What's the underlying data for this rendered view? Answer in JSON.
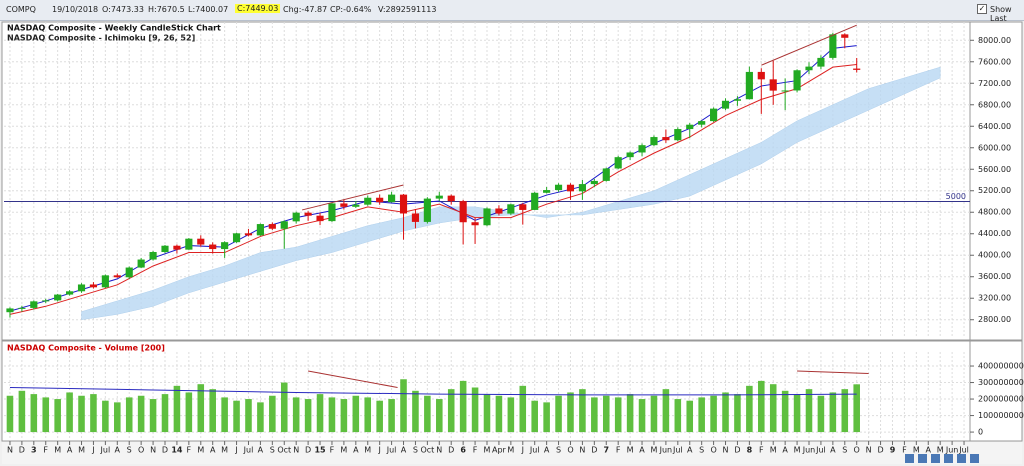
{
  "header": {
    "symbol": "COMPQ",
    "date": "19/10/2018",
    "open": "O:7473.33",
    "high": "H:7670.5",
    "low": "L:7400.07",
    "close": "C:7449.03",
    "change": "Chg:-47.87",
    "change_pct": "CP:-0.64%",
    "volume": "V:2892591113",
    "show_last": "Show Last"
  },
  "x_axis": {
    "xlim": [
      -0.5,
      80.5
    ],
    "xticks": [
      {
        "value": 0,
        "label": "N"
      },
      {
        "value": 1,
        "label": "D"
      },
      {
        "value": 2,
        "label": "3"
      },
      {
        "value": 3,
        "label": "F"
      },
      {
        "value": 4,
        "label": "M"
      },
      {
        "value": 5,
        "label": "A"
      },
      {
        "value": 6,
        "label": "M"
      },
      {
        "value": 7,
        "label": "J"
      },
      {
        "value": 8,
        "label": "Jul"
      },
      {
        "value": 9,
        "label": "A"
      },
      {
        "value": 10,
        "label": "S"
      },
      {
        "value": 11,
        "label": "O"
      },
      {
        "value": 12,
        "label": "N"
      },
      {
        "value": 13,
        "label": "D"
      },
      {
        "value": 14,
        "label": "14"
      },
      {
        "value": 15,
        "label": "F"
      },
      {
        "value": 16,
        "label": "M"
      },
      {
        "value": 17,
        "label": "A"
      },
      {
        "value": 18,
        "label": "M"
      },
      {
        "value": 19,
        "label": "J"
      },
      {
        "value": 20,
        "label": "Jul"
      },
      {
        "value": 21,
        "label": "A"
      },
      {
        "value": 22,
        "label": "S"
      },
      {
        "value": 23,
        "label": "Oct"
      },
      {
        "value": 24,
        "label": "N"
      },
      {
        "value": 25,
        "label": "D"
      },
      {
        "value": 26,
        "label": "15"
      },
      {
        "value": 27,
        "label": "F"
      },
      {
        "value": 28,
        "label": "M"
      },
      {
        "value": 29,
        "label": "A"
      },
      {
        "value": 30,
        "label": "M"
      },
      {
        "value": 31,
        "label": "J"
      },
      {
        "value": 32,
        "label": "Jul"
      },
      {
        "value": 33,
        "label": "A"
      },
      {
        "value": 34,
        "label": "S"
      },
      {
        "value": 35,
        "label": "Oct"
      },
      {
        "value": 36,
        "label": "N"
      },
      {
        "value": 37,
        "label": "D"
      },
      {
        "value": 38,
        "label": "6"
      },
      {
        "value": 39,
        "label": "F"
      },
      {
        "value": 40,
        "label": "M"
      },
      {
        "value": 41,
        "label": "Apr"
      },
      {
        "value": 42,
        "label": "M"
      },
      {
        "value": 43,
        "label": "J"
      },
      {
        "value": 44,
        "label": "Jul"
      },
      {
        "value": 45,
        "label": "A"
      },
      {
        "value": 46,
        "label": "S"
      },
      {
        "value": 47,
        "label": "O"
      },
      {
        "value": 48,
        "label": "N"
      },
      {
        "value": 49,
        "label": "D"
      },
      {
        "value": 50,
        "label": "7"
      },
      {
        "value": 51,
        "label": "F"
      },
      {
        "value": 52,
        "label": "M"
      },
      {
        "value": 53,
        "label": "A"
      },
      {
        "value": 54,
        "label": "M"
      },
      {
        "value": 55,
        "label": "Jun"
      },
      {
        "value": 56,
        "label": "Jul"
      },
      {
        "value": 57,
        "label": "A"
      },
      {
        "value": 58,
        "label": "S"
      },
      {
        "value": 59,
        "label": "O"
      },
      {
        "value": 60,
        "label": "N"
      },
      {
        "value": 61,
        "label": "D"
      },
      {
        "value": 62,
        "label": "8"
      },
      {
        "value": 63,
        "label": "F"
      },
      {
        "value": 64,
        "label": "M"
      },
      {
        "value": 65,
        "label": "A"
      },
      {
        "value": 66,
        "label": "M"
      },
      {
        "value": 67,
        "label": "Jun"
      },
      {
        "value": 68,
        "label": "Jul"
      },
      {
        "value": 69,
        "label": "A"
      },
      {
        "value": 70,
        "label": "S"
      },
      {
        "value": 71,
        "label": "O"
      },
      {
        "value": 72,
        "label": "N"
      },
      {
        "value": 73,
        "label": "D"
      },
      {
        "value": 74,
        "label": "9"
      },
      {
        "value": 75,
        "label": "F"
      },
      {
        "value": 76,
        "label": "M"
      },
      {
        "value": 77,
        "label": "A"
      },
      {
        "value": 78,
        "label": "M"
      },
      {
        "value": 79,
        "label": "Jun"
      },
      {
        "value": 80,
        "label": "Jul"
      }
    ]
  },
  "chart_data": [
    {
      "type": "candlestick",
      "title": "NASDAQ Composite - Weekly CandleStick Chart",
      "subtitle": "NASDAQ Composite - Ichimoku [9, 26, 52]",
      "up_color": "#22aa22",
      "down_color": "#dd1111",
      "open": [
        2940,
        3010,
        3020,
        3142,
        3160,
        3268,
        3329,
        3456,
        3403,
        3626,
        3590,
        3771,
        3920,
        4060,
        4177,
        4104,
        4308,
        4199,
        4115,
        4243,
        4408,
        4370,
        4580,
        4493,
        4631,
        4792,
        4736,
        4635,
        4964,
        4901,
        4941,
        5070,
        4987,
        5128,
        4777,
        4620,
        5054,
        5109,
        5007,
        4614,
        4558,
        4870,
        4775,
        4948,
        4843,
        5162,
        5213,
        5312,
        5189,
        5324,
        5383,
        5615,
        5825,
        5912,
        6048,
        6199,
        6140,
        6348,
        6429,
        6496,
        6728,
        6874,
        6903,
        7411,
        7273,
        7063,
        7066,
        7442,
        7510,
        7672,
        8110,
        7473.33
      ],
      "high": [
        3030,
        3060,
        3160,
        3190,
        3280,
        3350,
        3480,
        3500,
        3640,
        3660,
        3790,
        3950,
        4080,
        4190,
        4200,
        4320,
        4370,
        4240,
        4260,
        4420,
        4490,
        4590,
        4610,
        4650,
        4810,
        4820,
        4790,
        4980,
        5040,
        5010,
        5110,
        5130,
        5180,
        5140,
        4860,
        5080,
        5180,
        5130,
        5030,
        4700,
        4890,
        4930,
        4960,
        4970,
        5180,
        5270,
        5340,
        5340,
        5400,
        5420,
        5630,
        5850,
        5930,
        6080,
        6230,
        6340,
        6380,
        6460,
        6510,
        6750,
        6920,
        6960,
        7510,
        7480,
        7620,
        7290,
        7460,
        7590,
        7720,
        8140,
        8130,
        7670.5
      ],
      "low": [
        2840,
        2950,
        2990,
        3110,
        3140,
        3250,
        3300,
        3380,
        3390,
        3580,
        3560,
        3760,
        3900,
        4040,
        4030,
        4100,
        4160,
        4030,
        3950,
        4230,
        4350,
        4360,
        4470,
        4120,
        4590,
        4640,
        4560,
        4620,
        4850,
        4880,
        4920,
        4940,
        4980,
        4290,
        4500,
        4590,
        5010,
        4940,
        4200,
        4210,
        4540,
        4740,
        4750,
        4570,
        4840,
        5150,
        5180,
        5030,
        5030,
        5270,
        5370,
        5600,
        5770,
        5840,
        6030,
        6090,
        6120,
        6180,
        6380,
        6480,
        6700,
        6780,
        6900,
        6630,
        6800,
        6700,
        7030,
        7370,
        7460,
        7640,
        7850,
        7400.07
      ],
      "close": [
        3010,
        3020,
        3142,
        3160,
        3268,
        3329,
        3456,
        3403,
        3626,
        3590,
        3771,
        3920,
        4060,
        4177,
        4104,
        4308,
        4199,
        4115,
        4243,
        4408,
        4370,
        4580,
        4493,
        4631,
        4792,
        4736,
        4635,
        4964,
        4901,
        4941,
        5070,
        4987,
        5128,
        4777,
        4620,
        5054,
        5109,
        5007,
        4614,
        4558,
        4870,
        4775,
        4948,
        4843,
        5162,
        5213,
        5312,
        5189,
        5324,
        5383,
        5615,
        5825,
        5912,
        6048,
        6199,
        6140,
        6348,
        6429,
        6496,
        6728,
        6874,
        6903,
        7411,
        7273,
        7063,
        7066,
        7442,
        7510,
        7672,
        8110,
        8046,
        7449.03
      ],
      "lines": [
        {
          "color": "#1a1acc",
          "x": [
            0,
            3,
            6,
            9,
            12,
            15,
            18,
            21,
            24,
            27,
            30,
            33,
            36,
            39,
            42,
            45,
            48,
            51,
            54,
            57,
            60,
            63,
            66,
            69,
            71
          ],
          "values": [
            2960,
            3150,
            3360,
            3560,
            3950,
            4180,
            4150,
            4500,
            4700,
            4830,
            5010,
            4950,
            5010,
            4650,
            4880,
            5120,
            5280,
            5750,
            6080,
            6360,
            6800,
            7150,
            7250,
            7850,
            7900
          ]
        },
        {
          "color": "#dd2222",
          "x": [
            0,
            3,
            6,
            9,
            12,
            15,
            18,
            21,
            24,
            27,
            30,
            33,
            36,
            39,
            42,
            45,
            48,
            51,
            54,
            57,
            60,
            63,
            66,
            69,
            71
          ],
          "values": [
            2900,
            3050,
            3250,
            3450,
            3800,
            4050,
            4050,
            4350,
            4550,
            4700,
            4900,
            4800,
            4950,
            4700,
            4700,
            4950,
            5150,
            5550,
            5900,
            6200,
            6600,
            6900,
            7100,
            7500,
            7550
          ]
        }
      ],
      "cloud": {
        "color": "#b9d8f3",
        "x": [
          6,
          9,
          12,
          15,
          18,
          21,
          24,
          27,
          30,
          33,
          36,
          39,
          42,
          45,
          48,
          51,
          54,
          57,
          60,
          63,
          66,
          69,
          72,
          75,
          78
        ],
        "span_a": [
          2950,
          3150,
          3350,
          3600,
          3800,
          4050,
          4150,
          4350,
          4550,
          4700,
          4900,
          4900,
          4800,
          4700,
          4800,
          5000,
          5200,
          5500,
          5800,
          6100,
          6500,
          6800,
          7100,
          7300,
          7500
        ],
        "span_b": [
          2800,
          2900,
          3050,
          3300,
          3500,
          3700,
          3900,
          4050,
          4250,
          4450,
          4600,
          4700,
          4750,
          4750,
          4750,
          4850,
          4950,
          5100,
          5400,
          5700,
          6100,
          6400,
          6700,
          7000,
          7300
        ]
      },
      "trendlines": [
        {
          "x": [
            24.5,
            33
          ],
          "values": [
            4843,
            5307
          ]
        },
        {
          "x": [
            63,
            71
          ],
          "values": [
            7536,
            8280
          ]
        }
      ],
      "hline": 5000,
      "ylim": [
        2460,
        8340
      ],
      "yticks": [
        {
          "value": 2800,
          "label": "2800.00"
        },
        {
          "value": 3200,
          "label": "3200.00"
        },
        {
          "value": 3600,
          "label": "3600.00"
        },
        {
          "value": 4000,
          "label": "4000.00"
        },
        {
          "value": 4400,
          "label": "4400.00"
        },
        {
          "value": 4800,
          "label": "4800.00"
        },
        {
          "value": 5200,
          "label": "5200.00"
        },
        {
          "value": 5600,
          "label": "5600.00"
        },
        {
          "value": 6000,
          "label": "6000.00"
        },
        {
          "value": 6400,
          "label": "6400.00"
        },
        {
          "value": 6800,
          "label": "6800.00"
        },
        {
          "value": 7200,
          "label": "7200.00"
        },
        {
          "value": 7600,
          "label": "7600.00"
        },
        {
          "value": 8000,
          "label": "8000.00"
        }
      ],
      "grid": true
    },
    {
      "type": "bar",
      "title": "NASDAQ Composite - Volume [200]",
      "color": "#5fbf3f",
      "values": [
        2200000000,
        2500000000,
        2300000000,
        2100000000,
        2000000000,
        2400000000,
        2200000000,
        2300000000,
        1900000000,
        1800000000,
        2100000000,
        2200000000,
        2000000000,
        2300000000,
        2800000000,
        2400000000,
        2900000000,
        2600000000,
        2100000000,
        1900000000,
        2000000000,
        1800000000,
        2200000000,
        3000000000,
        2100000000,
        2000000000,
        2300000000,
        2100000000,
        2000000000,
        2200000000,
        2100000000,
        1900000000,
        2000000000,
        3200000000,
        2500000000,
        2200000000,
        2000000000,
        2600000000,
        3100000000,
        2700000000,
        2300000000,
        2200000000,
        2100000000,
        2800000000,
        1900000000,
        1800000000,
        2200000000,
        2400000000,
        2600000000,
        2100000000,
        2200000000,
        2100000000,
        2300000000,
        2000000000,
        2200000000,
        2600000000,
        2000000000,
        1900000000,
        2100000000,
        2200000000,
        2400000000,
        2300000000,
        2800000000,
        3100000000,
        2900000000,
        2500000000,
        2300000000,
        2600000000,
        2200000000,
        2400000000,
        2600000000,
        2892591113
      ],
      "ma": {
        "color": "#2a2ac0",
        "x": [
          0,
          12,
          24,
          36,
          48,
          60,
          71
        ],
        "values": [
          2700000000,
          2550000000,
          2400000000,
          2300000000,
          2250000000,
          2250000000,
          2300000000
        ]
      },
      "trendlines": [
        {
          "x": [
            25,
            32.5
          ],
          "values": [
            3700000000,
            2700000000
          ]
        },
        {
          "x": [
            66,
            72
          ],
          "values": [
            3700000000,
            3550000000
          ]
        }
      ],
      "ylim": [
        -480000000,
        4850000000
      ],
      "yticks": [
        0,
        1000000000,
        2000000000,
        3000000000,
        4000000000
      ],
      "grid": true
    }
  ]
}
